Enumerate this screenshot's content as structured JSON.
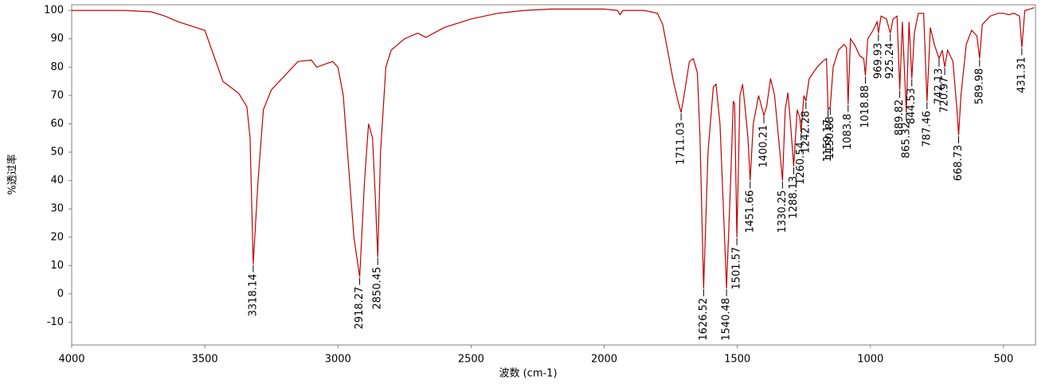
{
  "chart_data": {
    "type": "line",
    "xlabel": "波数 (cm-1)",
    "ylabel": "%透过率",
    "color": "#c00000",
    "xlim": [
      4000,
      380
    ],
    "ylim": [
      -18,
      102
    ],
    "xticks": [
      4000,
      3500,
      3000,
      2500,
      2000,
      1500,
      1000,
      500
    ],
    "yticks": [
      -10,
      0,
      10,
      20,
      30,
      40,
      50,
      60,
      70,
      80,
      90,
      100
    ],
    "x": [
      4000,
      3900,
      3800,
      3700,
      3650,
      3600,
      3500,
      3432,
      3372,
      3342,
      3330,
      3318.14,
      3300,
      3280,
      3250,
      3200,
      3150,
      3100,
      3080,
      3050,
      3020,
      3000,
      2980,
      2960,
      2940,
      2918.27,
      2900,
      2885,
      2870,
      2860,
      2850.45,
      2840,
      2820,
      2800,
      2750,
      2700,
      2670,
      2600,
      2500,
      2400,
      2300,
      2200,
      2100,
      2000,
      1950,
      1940,
      1930,
      1850,
      1800,
      1780,
      1760,
      1740,
      1720,
      1711.03,
      1700,
      1680,
      1665,
      1650,
      1640,
      1626.52,
      1610,
      1590,
      1580,
      1565,
      1550,
      1540.48,
      1525,
      1515,
      1510,
      1501.57,
      1490,
      1480,
      1470,
      1460,
      1451.66,
      1440,
      1420,
      1400.21,
      1390,
      1375,
      1360,
      1345,
      1330.25,
      1320,
      1310,
      1300,
      1288.13,
      1275,
      1265,
      1260.54,
      1250,
      1242.28,
      1230,
      1200,
      1180,
      1165,
      1159.17,
      1150.88,
      1140,
      1120,
      1100,
      1090,
      1083.8,
      1075,
      1060,
      1040,
      1025,
      1018.88,
      1010,
      990,
      975,
      969.93,
      960,
      940,
      925.24,
      915,
      900,
      889.82,
      880,
      865.32,
      855,
      844.53,
      835,
      820,
      800,
      787.46,
      775,
      760,
      742.13,
      730,
      720.97,
      710,
      690,
      675,
      668.73,
      660,
      640,
      620,
      600,
      589.98,
      580,
      550,
      520,
      500,
      480,
      460,
      440,
      431.31,
      420,
      400,
      385
    ],
    "values": [
      100,
      100,
      100,
      99.5,
      98,
      96,
      93,
      75,
      70.7,
      66,
      55,
      10.5,
      40,
      65,
      72,
      77,
      82,
      82.5,
      80,
      81,
      82,
      80,
      70,
      45,
      20,
      6,
      40,
      60,
      55,
      35,
      13,
      50,
      80,
      86,
      90,
      92,
      90.5,
      94,
      97,
      99,
      100,
      100.5,
      100.5,
      100.5,
      100,
      98.5,
      100,
      100,
      99,
      95,
      85,
      75,
      67,
      64,
      70,
      82,
      83,
      78,
      55,
      2,
      50,
      73,
      74,
      60,
      25,
      2,
      40,
      68,
      67,
      20,
      70,
      74,
      65,
      55,
      40,
      60,
      70,
      63,
      66,
      76,
      70,
      55,
      40,
      65,
      71,
      60,
      45,
      65,
      62,
      57,
      70,
      68,
      76,
      80,
      82,
      83,
      65,
      66,
      80,
      86,
      88,
      87,
      67,
      90,
      88,
      84,
      83,
      77,
      90,
      93,
      96,
      92,
      98,
      97,
      92,
      97,
      98,
      72,
      96,
      64,
      96,
      76,
      92,
      99,
      99,
      68,
      94,
      88,
      83,
      86,
      80,
      86,
      82,
      65,
      56,
      70,
      88,
      93,
      91,
      83,
      95,
      98,
      99,
      99,
      98.5,
      99,
      98,
      87,
      100,
      100.5,
      101
    ],
    "peaks": {
      "x": [
        3318.14,
        2918.27,
        2850.45,
        1711.03,
        1626.52,
        1540.48,
        1501.57,
        1451.66,
        1400.21,
        1330.25,
        1288.13,
        1260.54,
        1242.28,
        1159.17,
        1150.88,
        1083.8,
        1018.88,
        969.93,
        925.24,
        889.82,
        865.32,
        844.53,
        787.46,
        742.13,
        720.97,
        668.73,
        589.98,
        431.31
      ],
      "values": [
        10.5,
        6,
        13,
        64,
        2,
        2,
        20,
        40,
        63,
        40,
        45,
        57,
        68,
        65,
        66,
        67,
        77,
        92,
        92,
        72,
        64,
        76,
        68,
        83,
        80,
        56,
        83,
        87
      ]
    }
  }
}
